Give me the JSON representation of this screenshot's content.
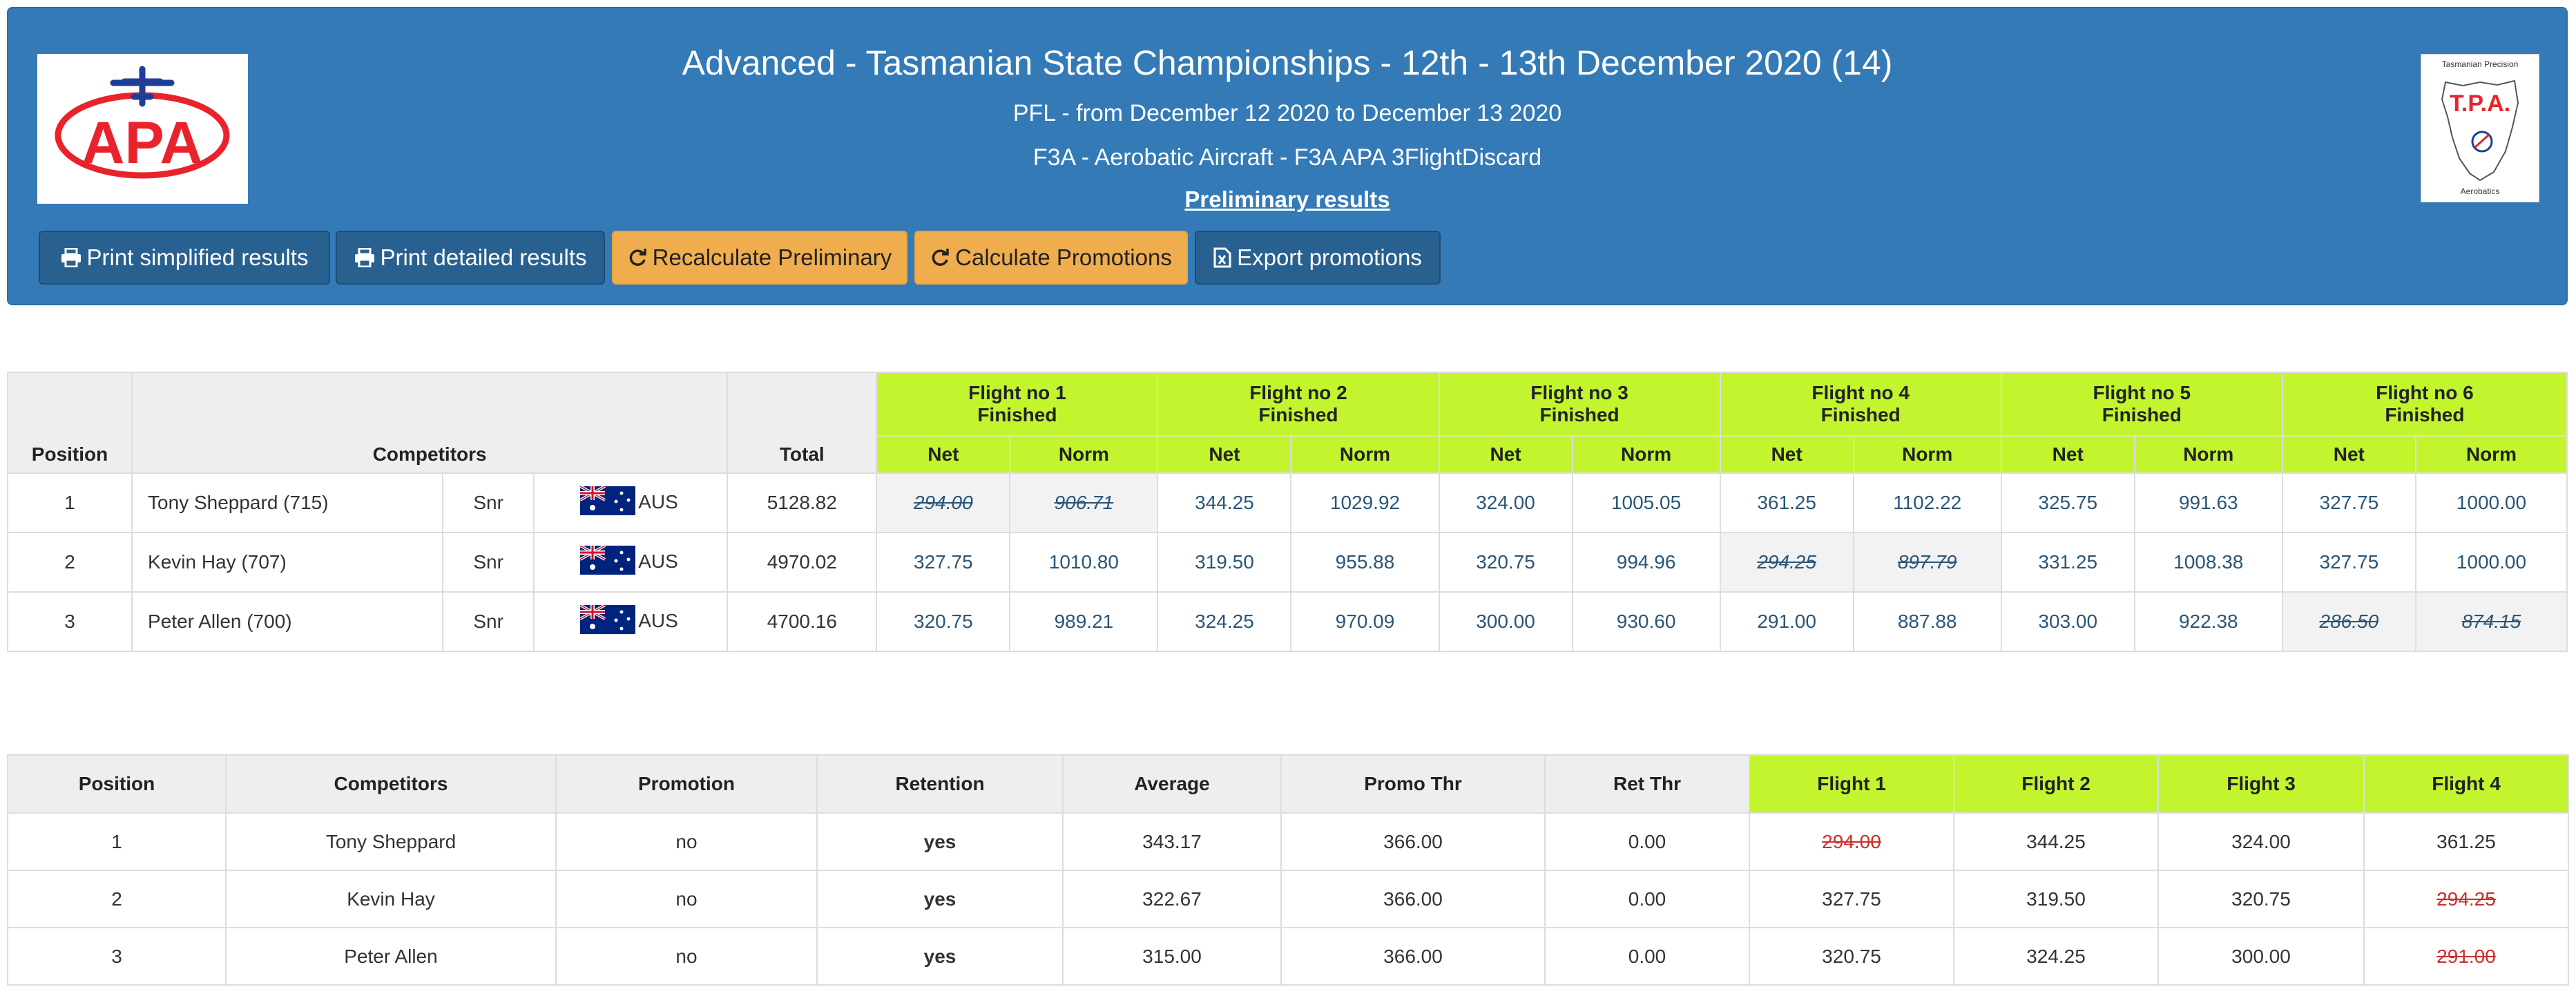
{
  "header": {
    "title": "Advanced - Tasmanian State Championships - 12th - 13th December 2020 (14)",
    "subtitle1": "PFL - from December 12 2020 to December 13 2020",
    "subtitle2": "F3A - Aerobatic Aircraft - F3A APA 3FlightDiscard",
    "preliminary": "Preliminary results",
    "logo_left_text": "APA",
    "logo_right_text": "T.P.A.",
    "logo_right_top": "Tasmanian Precision",
    "logo_right_bottom": "Aerobatics",
    "colors": {
      "primary": "#337ab7",
      "warning": "#f0ad4e",
      "accent": "#c2f52e",
      "red": "#e8232b"
    }
  },
  "buttons": [
    {
      "label": "Print simplified results",
      "icon": "print-icon"
    },
    {
      "label": "Print detailed results",
      "icon": "print-icon"
    },
    {
      "label": "Recalculate Preliminary",
      "icon": "refresh-icon"
    },
    {
      "label": "Calculate Promotions",
      "icon": "refresh-icon"
    },
    {
      "label": "Export promotions",
      "icon": "file-excel-icon"
    }
  ],
  "results": {
    "headers": {
      "position": "Position",
      "competitors": "Competitors",
      "total": "Total",
      "net": "Net",
      "norm": "Norm"
    },
    "flights": [
      {
        "name": "Flight no 1",
        "status": "Finished"
      },
      {
        "name": "Flight no 2",
        "status": "Finished"
      },
      {
        "name": "Flight no 3",
        "status": "Finished"
      },
      {
        "name": "Flight no 4",
        "status": "Finished"
      },
      {
        "name": "Flight no 5",
        "status": "Finished"
      },
      {
        "name": "Flight no 6",
        "status": "Finished"
      }
    ],
    "rows": [
      {
        "position": "1",
        "name": "Tony Sheppard (715)",
        "class": "Snr",
        "country": "AUS",
        "total": "5128.82",
        "scores": [
          [
            "294.00",
            "906.71"
          ],
          [
            "344.25",
            "1029.92"
          ],
          [
            "324.00",
            "1005.05"
          ],
          [
            "361.25",
            "1102.22"
          ],
          [
            "325.75",
            "991.63"
          ],
          [
            "327.75",
            "1000.00"
          ]
        ],
        "discarded": 0
      },
      {
        "position": "2",
        "name": "Kevin Hay (707)",
        "class": "Snr",
        "country": "AUS",
        "total": "4970.02",
        "scores": [
          [
            "327.75",
            "1010.80"
          ],
          [
            "319.50",
            "955.88"
          ],
          [
            "320.75",
            "994.96"
          ],
          [
            "294.25",
            "897.79"
          ],
          [
            "331.25",
            "1008.38"
          ],
          [
            "327.75",
            "1000.00"
          ]
        ],
        "discarded": 3
      },
      {
        "position": "3",
        "name": "Peter Allen (700)",
        "class": "Snr",
        "country": "AUS",
        "total": "4700.16",
        "scores": [
          [
            "320.75",
            "989.21"
          ],
          [
            "324.25",
            "970.09"
          ],
          [
            "300.00",
            "930.60"
          ],
          [
            "291.00",
            "887.88"
          ],
          [
            "303.00",
            "922.38"
          ],
          [
            "286.50",
            "874.15"
          ]
        ],
        "discarded": 5
      }
    ]
  },
  "promotions": {
    "headers": [
      "Position",
      "Competitors",
      "Promotion",
      "Retention",
      "Average",
      "Promo Thr",
      "Ret Thr",
      "Flight 1",
      "Flight 2",
      "Flight 3",
      "Flight 4"
    ],
    "rows": [
      {
        "position": "1",
        "name": "Tony Sheppard",
        "promotion": "no",
        "retention": "yes",
        "average": "343.17",
        "promo_thr": "366.00",
        "ret_thr": "0.00",
        "flights": [
          "294.00",
          "344.25",
          "324.00",
          "361.25"
        ],
        "struck": [
          0
        ]
      },
      {
        "position": "2",
        "name": "Kevin Hay",
        "promotion": "no",
        "retention": "yes",
        "average": "322.67",
        "promo_thr": "366.00",
        "ret_thr": "0.00",
        "flights": [
          "327.75",
          "319.50",
          "320.75",
          "294.25"
        ],
        "struck": [
          3
        ]
      },
      {
        "position": "3",
        "name": "Peter Allen",
        "promotion": "no",
        "retention": "yes",
        "average": "315.00",
        "promo_thr": "366.00",
        "ret_thr": "0.00",
        "flights": [
          "320.75",
          "324.25",
          "300.00",
          "291.00"
        ],
        "struck": [
          3
        ]
      }
    ]
  }
}
